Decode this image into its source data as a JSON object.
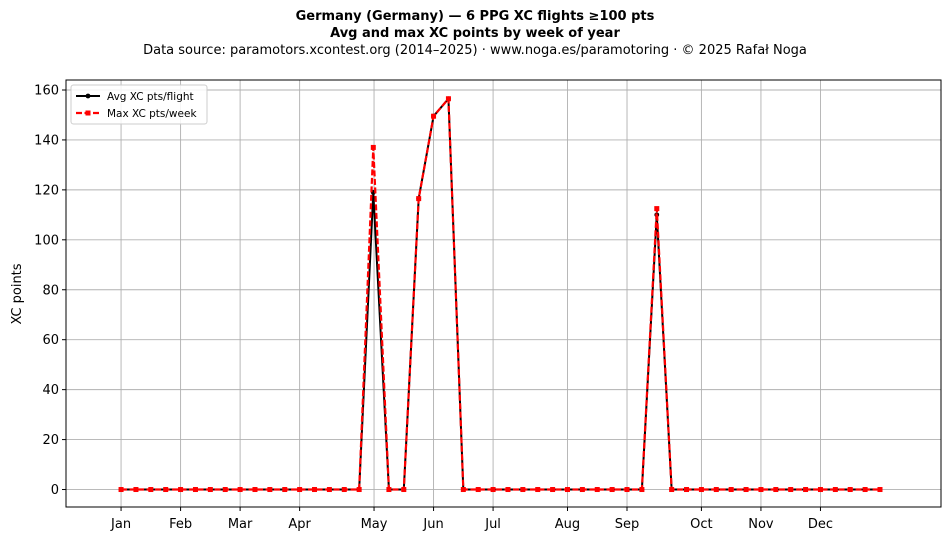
{
  "chart_data": {
    "type": "line",
    "title_line1": "Germany (Germany)  —  6 PPG XC flights ≥100 pts",
    "title_line2": "Avg and max XC points by week of year",
    "subtitle": "Data source: paramotors.xcontest.org (2014–2025)  ·  www.noga.es/paramotoring  ·  © 2025 Rafał Noga",
    "xlabel": "",
    "ylabel": "XC points",
    "x_tick_labels": [
      "Jan",
      "Feb",
      "Mar",
      "Apr",
      "May",
      "Jun",
      "Jul",
      "Aug",
      "Sep",
      "Oct",
      "Nov",
      "Dec"
    ],
    "x_tick_weeks": [
      1,
      5,
      9,
      13,
      18,
      22,
      26,
      31,
      35,
      40,
      44,
      48
    ],
    "y_ticks": [
      0,
      20,
      40,
      60,
      80,
      100,
      120,
      140,
      160
    ],
    "ylim": [
      -7,
      164
    ],
    "xlim": [
      -2.7,
      56.1
    ],
    "grid": true,
    "legend_position": "upper-left",
    "weeks": [
      1,
      2,
      3,
      4,
      5,
      6,
      7,
      8,
      9,
      10,
      11,
      12,
      13,
      14,
      15,
      16,
      17,
      17.95,
      19,
      20,
      21,
      22,
      23,
      24,
      25,
      26,
      27,
      28,
      29,
      30,
      31,
      32,
      33,
      34,
      35,
      36,
      37,
      38,
      39,
      40,
      41,
      42,
      43,
      44,
      45,
      46,
      47,
      48,
      49,
      50,
      51,
      52
    ],
    "series": [
      {
        "name": "Avg XC pts/flight",
        "color": "#000000",
        "style": "solid",
        "marker": "circle",
        "values": [
          0,
          0,
          0,
          0,
          0,
          0,
          0,
          0,
          0,
          0,
          0,
          0,
          0,
          0,
          0,
          0,
          0,
          119,
          0,
          0,
          116.5,
          149.5,
          156.5,
          0,
          0,
          0,
          0,
          0,
          0,
          0,
          0,
          0,
          0,
          0,
          0,
          0,
          110,
          0,
          0,
          0,
          0,
          0,
          0,
          0,
          0,
          0,
          0,
          0,
          0,
          0,
          0,
          0
        ]
      },
      {
        "name": "Max XC pts/week",
        "color": "#ff0000",
        "style": "dashed",
        "marker": "square",
        "values": [
          0,
          0,
          0,
          0,
          0,
          0,
          0,
          0,
          0,
          0,
          0,
          0,
          0,
          0,
          0,
          0,
          0,
          137,
          0,
          0,
          116.5,
          149.5,
          156.5,
          0,
          0,
          0,
          0,
          0,
          0,
          0,
          0,
          0,
          0,
          0,
          0,
          0,
          112.5,
          0,
          0,
          0,
          0,
          0,
          0,
          0,
          0,
          0,
          0,
          0,
          0,
          0,
          0,
          0
        ]
      }
    ]
  }
}
